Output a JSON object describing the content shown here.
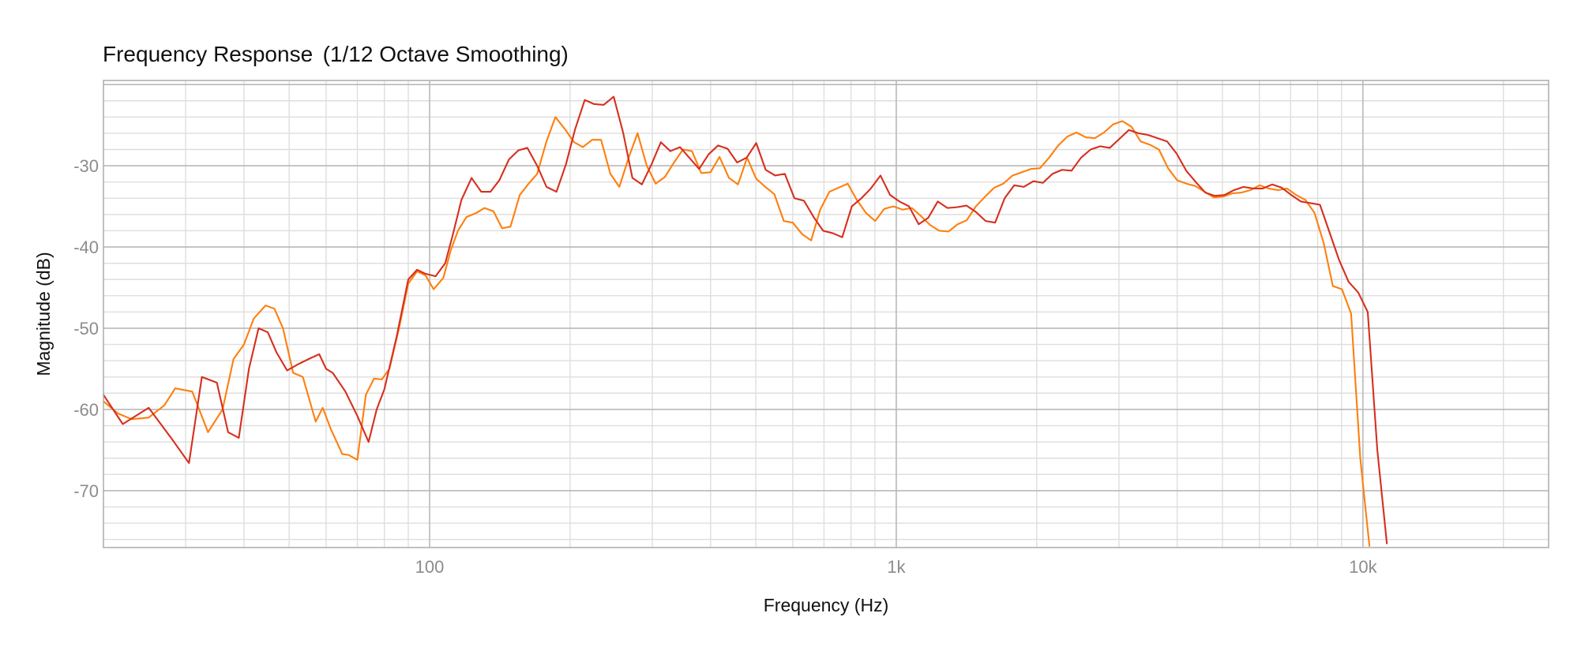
{
  "chart_data": {
    "type": "line",
    "title": "Frequency Response",
    "subtitle": "(1/12 Octave Smoothing)",
    "xlabel": "Frequency (Hz)",
    "ylabel": "Magnitude (dB)",
    "x_scale": "log",
    "xlim": [
      20,
      25000
    ],
    "ylim": [
      -77,
      -19.5
    ],
    "x_ticks": [
      {
        "value": 100,
        "label": "100"
      },
      {
        "value": 1000,
        "label": "1k"
      },
      {
        "value": 10000,
        "label": "10k"
      }
    ],
    "y_ticks": [
      {
        "value": -30,
        "label": "-30"
      },
      {
        "value": -40,
        "label": "-40"
      },
      {
        "value": -50,
        "label": "-50"
      },
      {
        "value": -60,
        "label": "-60"
      },
      {
        "value": -70,
        "label": "-70"
      }
    ],
    "grid": true,
    "legend": "none",
    "series": [
      {
        "color": "#ff7f0e",
        "points": [
          [
            20,
            -59.0
          ],
          [
            21.5,
            -60.5
          ],
          [
            23,
            -61.2
          ],
          [
            25,
            -61.0
          ],
          [
            27,
            -59.5
          ],
          [
            28.5,
            -57.4
          ],
          [
            31,
            -57.8
          ],
          [
            33.5,
            -62.8
          ],
          [
            36,
            -60.0
          ],
          [
            38,
            -53.8
          ],
          [
            40,
            -52.0
          ],
          [
            42,
            -48.8
          ],
          [
            44.5,
            -47.2
          ],
          [
            46.5,
            -47.6
          ],
          [
            48.5,
            -50.0
          ],
          [
            51,
            -55.5
          ],
          [
            53.5,
            -56.0
          ],
          [
            57,
            -61.5
          ],
          [
            59,
            -59.8
          ],
          [
            61.5,
            -62.5
          ],
          [
            65,
            -65.5
          ],
          [
            67,
            -65.6
          ],
          [
            70,
            -66.2
          ],
          [
            73,
            -58.2
          ],
          [
            76,
            -56.2
          ],
          [
            79,
            -56.3
          ],
          [
            82,
            -55.0
          ],
          [
            86,
            -50.0
          ],
          [
            90,
            -44.5
          ],
          [
            94,
            -43.0
          ],
          [
            98,
            -43.5
          ],
          [
            102,
            -45.2
          ],
          [
            107,
            -43.8
          ],
          [
            111,
            -40.4
          ],
          [
            115,
            -38.0
          ],
          [
            120,
            -36.3
          ],
          [
            126,
            -35.8
          ],
          [
            131,
            -35.2
          ],
          [
            137,
            -35.6
          ],
          [
            143,
            -37.7
          ],
          [
            149,
            -37.5
          ],
          [
            156,
            -33.6
          ],
          [
            163,
            -32.2
          ],
          [
            170,
            -31.0
          ],
          [
            178,
            -27.0
          ],
          [
            186,
            -24.0
          ],
          [
            195,
            -25.5
          ],
          [
            204,
            -27.1
          ],
          [
            213,
            -27.7
          ],
          [
            223,
            -26.8
          ],
          [
            233,
            -26.8
          ],
          [
            244,
            -31.0
          ],
          [
            255,
            -32.6
          ],
          [
            267,
            -29.0
          ],
          [
            279,
            -26.0
          ],
          [
            292,
            -30.0
          ],
          [
            305,
            -32.2
          ],
          [
            319,
            -31.4
          ],
          [
            334,
            -29.6
          ],
          [
            349,
            -28.0
          ],
          [
            365,
            -28.2
          ],
          [
            382,
            -30.9
          ],
          [
            400,
            -30.8
          ],
          [
            418,
            -28.9
          ],
          [
            438,
            -31.5
          ],
          [
            458,
            -32.3
          ],
          [
            479,
            -29.0
          ],
          [
            501,
            -31.6
          ],
          [
            524,
            -32.6
          ],
          [
            548,
            -33.5
          ],
          [
            574,
            -36.8
          ],
          [
            600,
            -37.0
          ],
          [
            628,
            -38.4
          ],
          [
            657,
            -39.2
          ],
          [
            687,
            -35.4
          ],
          [
            719,
            -33.2
          ],
          [
            752,
            -32.7
          ],
          [
            787,
            -32.2
          ],
          [
            823,
            -34.2
          ],
          [
            861,
            -35.8
          ],
          [
            901,
            -36.8
          ],
          [
            943,
            -35.3
          ],
          [
            986,
            -35.0
          ],
          [
            1032,
            -35.4
          ],
          [
            1080,
            -35.2
          ],
          [
            1130,
            -36.2
          ],
          [
            1182,
            -37.3
          ],
          [
            1236,
            -38.0
          ],
          [
            1294,
            -38.1
          ],
          [
            1354,
            -37.2
          ],
          [
            1416,
            -36.7
          ],
          [
            1481,
            -35.0
          ],
          [
            1550,
            -33.8
          ],
          [
            1621,
            -32.7
          ],
          [
            1696,
            -32.2
          ],
          [
            1775,
            -31.2
          ],
          [
            1857,
            -30.8
          ],
          [
            1942,
            -30.4
          ],
          [
            2032,
            -30.3
          ],
          [
            2126,
            -29.0
          ],
          [
            2224,
            -27.5
          ],
          [
            2327,
            -26.4
          ],
          [
            2434,
            -25.9
          ],
          [
            2547,
            -26.5
          ],
          [
            2664,
            -26.6
          ],
          [
            2787,
            -25.9
          ],
          [
            2916,
            -24.9
          ],
          [
            3051,
            -24.5
          ],
          [
            3192,
            -25.2
          ],
          [
            3339,
            -27.0
          ],
          [
            3493,
            -27.4
          ],
          [
            3655,
            -28.0
          ],
          [
            3823,
            -30.3
          ],
          [
            4000,
            -31.8
          ],
          [
            4185,
            -32.2
          ],
          [
            4378,
            -32.5
          ],
          [
            4580,
            -33.2
          ],
          [
            4792,
            -33.9
          ],
          [
            5013,
            -33.8
          ],
          [
            5245,
            -33.4
          ],
          [
            5487,
            -33.3
          ],
          [
            5740,
            -33.0
          ],
          [
            6006,
            -32.4
          ],
          [
            6283,
            -32.8
          ],
          [
            6574,
            -33.0
          ],
          [
            6877,
            -32.8
          ],
          [
            7195,
            -33.6
          ],
          [
            7527,
            -34.2
          ],
          [
            7875,
            -35.8
          ],
          [
            8239,
            -39.5
          ],
          [
            8620,
            -44.8
          ],
          [
            9018,
            -45.2
          ],
          [
            9434,
            -48.2
          ],
          [
            9870,
            -66.0
          ],
          [
            10326,
            -76.8
          ]
        ]
      },
      {
        "color": "#d62f1e",
        "points": [
          [
            20,
            -58.2
          ],
          [
            22,
            -61.8
          ],
          [
            25,
            -59.8
          ],
          [
            28,
            -63.6
          ],
          [
            30.5,
            -66.6
          ],
          [
            32.5,
            -56.0
          ],
          [
            35,
            -56.7
          ],
          [
            37,
            -62.8
          ],
          [
            39,
            -63.5
          ],
          [
            41,
            -55.0
          ],
          [
            43,
            -50.0
          ],
          [
            45,
            -50.5
          ],
          [
            47,
            -53.0
          ],
          [
            49.5,
            -55.2
          ],
          [
            52,
            -54.5
          ],
          [
            55,
            -53.8
          ],
          [
            58,
            -53.2
          ],
          [
            60,
            -55.0
          ],
          [
            62,
            -55.5
          ],
          [
            66,
            -57.8
          ],
          [
            70,
            -60.8
          ],
          [
            74,
            -64.0
          ],
          [
            77,
            -60.0
          ],
          [
            80,
            -57.5
          ],
          [
            85,
            -51.0
          ],
          [
            90,
            -44.0
          ],
          [
            94,
            -42.8
          ],
          [
            98,
            -43.3
          ],
          [
            103,
            -43.6
          ],
          [
            108,
            -42.0
          ],
          [
            112,
            -38.6
          ],
          [
            117,
            -34.2
          ],
          [
            123,
            -31.5
          ],
          [
            129,
            -33.2
          ],
          [
            135,
            -33.2
          ],
          [
            141,
            -31.8
          ],
          [
            148,
            -29.2
          ],
          [
            155,
            -28.1
          ],
          [
            162,
            -27.8
          ],
          [
            170,
            -30.0
          ],
          [
            178,
            -32.6
          ],
          [
            187,
            -33.2
          ],
          [
            196,
            -29.8
          ],
          [
            205,
            -25.5
          ],
          [
            215,
            -21.9
          ],
          [
            225,
            -22.4
          ],
          [
            236,
            -22.5
          ],
          [
            248,
            -21.5
          ],
          [
            260,
            -26.0
          ],
          [
            272,
            -31.5
          ],
          [
            285,
            -32.3
          ],
          [
            299,
            -29.8
          ],
          [
            313,
            -27.1
          ],
          [
            328,
            -28.2
          ],
          [
            344,
            -27.7
          ],
          [
            360,
            -29.0
          ],
          [
            378,
            -30.4
          ],
          [
            396,
            -28.6
          ],
          [
            415,
            -27.5
          ],
          [
            435,
            -27.9
          ],
          [
            456,
            -29.6
          ],
          [
            478,
            -29.0
          ],
          [
            501,
            -27.2
          ],
          [
            525,
            -30.5
          ],
          [
            550,
            -31.2
          ],
          [
            577,
            -31.0
          ],
          [
            605,
            -34.0
          ],
          [
            634,
            -34.3
          ],
          [
            665,
            -36.3
          ],
          [
            697,
            -38.0
          ],
          [
            731,
            -38.3
          ],
          [
            766,
            -38.8
          ],
          [
            803,
            -35.0
          ],
          [
            842,
            -34.0
          ],
          [
            882,
            -32.8
          ],
          [
            925,
            -31.2
          ],
          [
            970,
            -33.6
          ],
          [
            1016,
            -34.4
          ],
          [
            1065,
            -35.0
          ],
          [
            1117,
            -37.2
          ],
          [
            1171,
            -36.4
          ],
          [
            1227,
            -34.4
          ],
          [
            1287,
            -35.2
          ],
          [
            1349,
            -35.1
          ],
          [
            1414,
            -34.9
          ],
          [
            1482,
            -35.7
          ],
          [
            1554,
            -36.8
          ],
          [
            1629,
            -37.0
          ],
          [
            1707,
            -34.0
          ],
          [
            1790,
            -32.4
          ],
          [
            1876,
            -32.6
          ],
          [
            1967,
            -31.9
          ],
          [
            2062,
            -32.1
          ],
          [
            2161,
            -31.0
          ],
          [
            2265,
            -30.5
          ],
          [
            2375,
            -30.6
          ],
          [
            2489,
            -29.0
          ],
          [
            2609,
            -28.0
          ],
          [
            2735,
            -27.6
          ],
          [
            2867,
            -27.8
          ],
          [
            3006,
            -26.7
          ],
          [
            3151,
            -25.6
          ],
          [
            3303,
            -26.0
          ],
          [
            3462,
            -26.2
          ],
          [
            3629,
            -26.6
          ],
          [
            3805,
            -27.0
          ],
          [
            3988,
            -28.5
          ],
          [
            4181,
            -30.6
          ],
          [
            4383,
            -32.0
          ],
          [
            4594,
            -33.3
          ],
          [
            4816,
            -33.7
          ],
          [
            5049,
            -33.6
          ],
          [
            5292,
            -33.0
          ],
          [
            5548,
            -32.6
          ],
          [
            5816,
            -32.8
          ],
          [
            6097,
            -32.8
          ],
          [
            6391,
            -32.3
          ],
          [
            6700,
            -32.7
          ],
          [
            7023,
            -33.6
          ],
          [
            7362,
            -34.4
          ],
          [
            7718,
            -34.6
          ],
          [
            8090,
            -34.8
          ],
          [
            8481,
            -38.2
          ],
          [
            8890,
            -41.6
          ],
          [
            9320,
            -44.3
          ],
          [
            9770,
            -45.6
          ],
          [
            10241,
            -48.0
          ],
          [
            10736,
            -65.0
          ],
          [
            11254,
            -76.5
          ]
        ]
      }
    ]
  }
}
